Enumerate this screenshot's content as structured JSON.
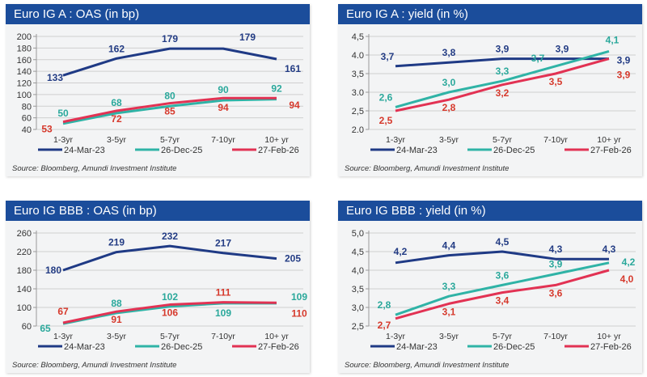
{
  "colors": {
    "header": "#1b4d9b",
    "series": [
      "#1f3a85",
      "#2fb3a6",
      "#e23253"
    ],
    "labels": [
      "#233c84",
      "#2aa89b",
      "#d6392c"
    ]
  },
  "chart_data": [
    {
      "type": "line",
      "title": "Euro IG A : OAS (in bp)",
      "categories": [
        "1-3yr",
        "3-5yr",
        "5-7yr",
        "7-10yr",
        "10+ yr"
      ],
      "yticks": [
        "40",
        "60",
        "80",
        "100",
        "120",
        "140",
        "160",
        "180",
        "200"
      ],
      "ylim": [
        40,
        200
      ],
      "grid": true,
      "legend": "bottom",
      "series": [
        {
          "name": "24-Mar-23",
          "values": [
            133,
            162,
            179,
            179,
            161
          ]
        },
        {
          "name": "26-Dec-25",
          "values": [
            50,
            68,
            80,
            90,
            92
          ]
        },
        {
          "name": "27-Feb-26",
          "values": [
            53,
            72,
            85,
            94,
            94
          ]
        }
      ],
      "source": "Source: Bloomberg, Amundi Investment Institute"
    },
    {
      "type": "line",
      "title": "Euro IG A : yield (in %)",
      "categories": [
        "1-3yr",
        "3-5yr",
        "5-7yr",
        "7-10yr",
        "10+ yr"
      ],
      "yticks": [
        "2.0",
        "2,5",
        "3.0",
        "3,5",
        "4.0",
        "4,5"
      ],
      "ylim": [
        2.0,
        4.5
      ],
      "grid": true,
      "legend": "bottom",
      "series": [
        {
          "name": "24-Mar-23",
          "values": [
            3.7,
            3.8,
            3.9,
            3.9,
            3.9
          ],
          "labels": [
            "3,7",
            "3,8",
            "3,9",
            "3,9",
            "3,9"
          ]
        },
        {
          "name": "26-Dec-25",
          "values": [
            2.6,
            3.0,
            3.3,
            3.7,
            4.1
          ],
          "labels": [
            "2,6",
            "3,0",
            "3,3",
            "3,7",
            "4,1"
          ]
        },
        {
          "name": "27-Feb-26",
          "values": [
            2.5,
            2.8,
            3.2,
            3.5,
            3.9
          ],
          "labels": [
            "2,5",
            "2,8",
            "3,2",
            "3,5",
            "3,9"
          ]
        }
      ],
      "source": "Source: Bloomberg, Amundi Investment Institute"
    },
    {
      "type": "line",
      "title": "Euro IG BBB : OAS (in bp)",
      "categories": [
        "1-3yr",
        "3-5yr",
        "5-7yr",
        "7-10yr",
        "10+ yr"
      ],
      "yticks": [
        "60",
        "100",
        "140",
        "180",
        "220",
        "260"
      ],
      "ylim": [
        60,
        260
      ],
      "grid": true,
      "legend": "bottom",
      "series": [
        {
          "name": "24-Mar-23",
          "values": [
            180,
            219,
            232,
            217,
            205
          ]
        },
        {
          "name": "26-Dec-25",
          "values": [
            65,
            88,
            102,
            109,
            109
          ]
        },
        {
          "name": "27-Feb-26",
          "values": [
            67,
            91,
            106,
            111,
            110
          ]
        }
      ],
      "source": "Source: Bloomberg, Amundi Investment Institute"
    },
    {
      "type": "line",
      "title": "Euro IG BBB : yield (in %)",
      "categories": [
        "1-3yr",
        "3-5yr",
        "5-7yr",
        "7-10yr",
        "10+ yr"
      ],
      "yticks": [
        "2,5",
        "3,0",
        "3,5",
        "4,0",
        "4,5",
        "5,0"
      ],
      "ylim": [
        2.5,
        5.0
      ],
      "grid": true,
      "legend": "bottom",
      "series": [
        {
          "name": "24-Mar-23",
          "values": [
            4.2,
            4.4,
            4.5,
            4.3,
            4.3
          ],
          "labels": [
            "4,2",
            "4,4",
            "4,5",
            "4,3",
            "4,3"
          ]
        },
        {
          "name": "26-Dec-25",
          "values": [
            2.8,
            3.3,
            3.6,
            3.9,
            4.2
          ],
          "labels": [
            "2,8",
            "3,3",
            "3,6",
            "3,9",
            "4,2"
          ]
        },
        {
          "name": "27-Feb-26",
          "values": [
            2.7,
            3.1,
            3.4,
            3.6,
            4.0
          ],
          "labels": [
            "2,7",
            "3,1",
            "3,4",
            "3,6",
            "4,0"
          ]
        }
      ],
      "source": "Source: Bloomberg, Amundi Investment Institute"
    }
  ]
}
